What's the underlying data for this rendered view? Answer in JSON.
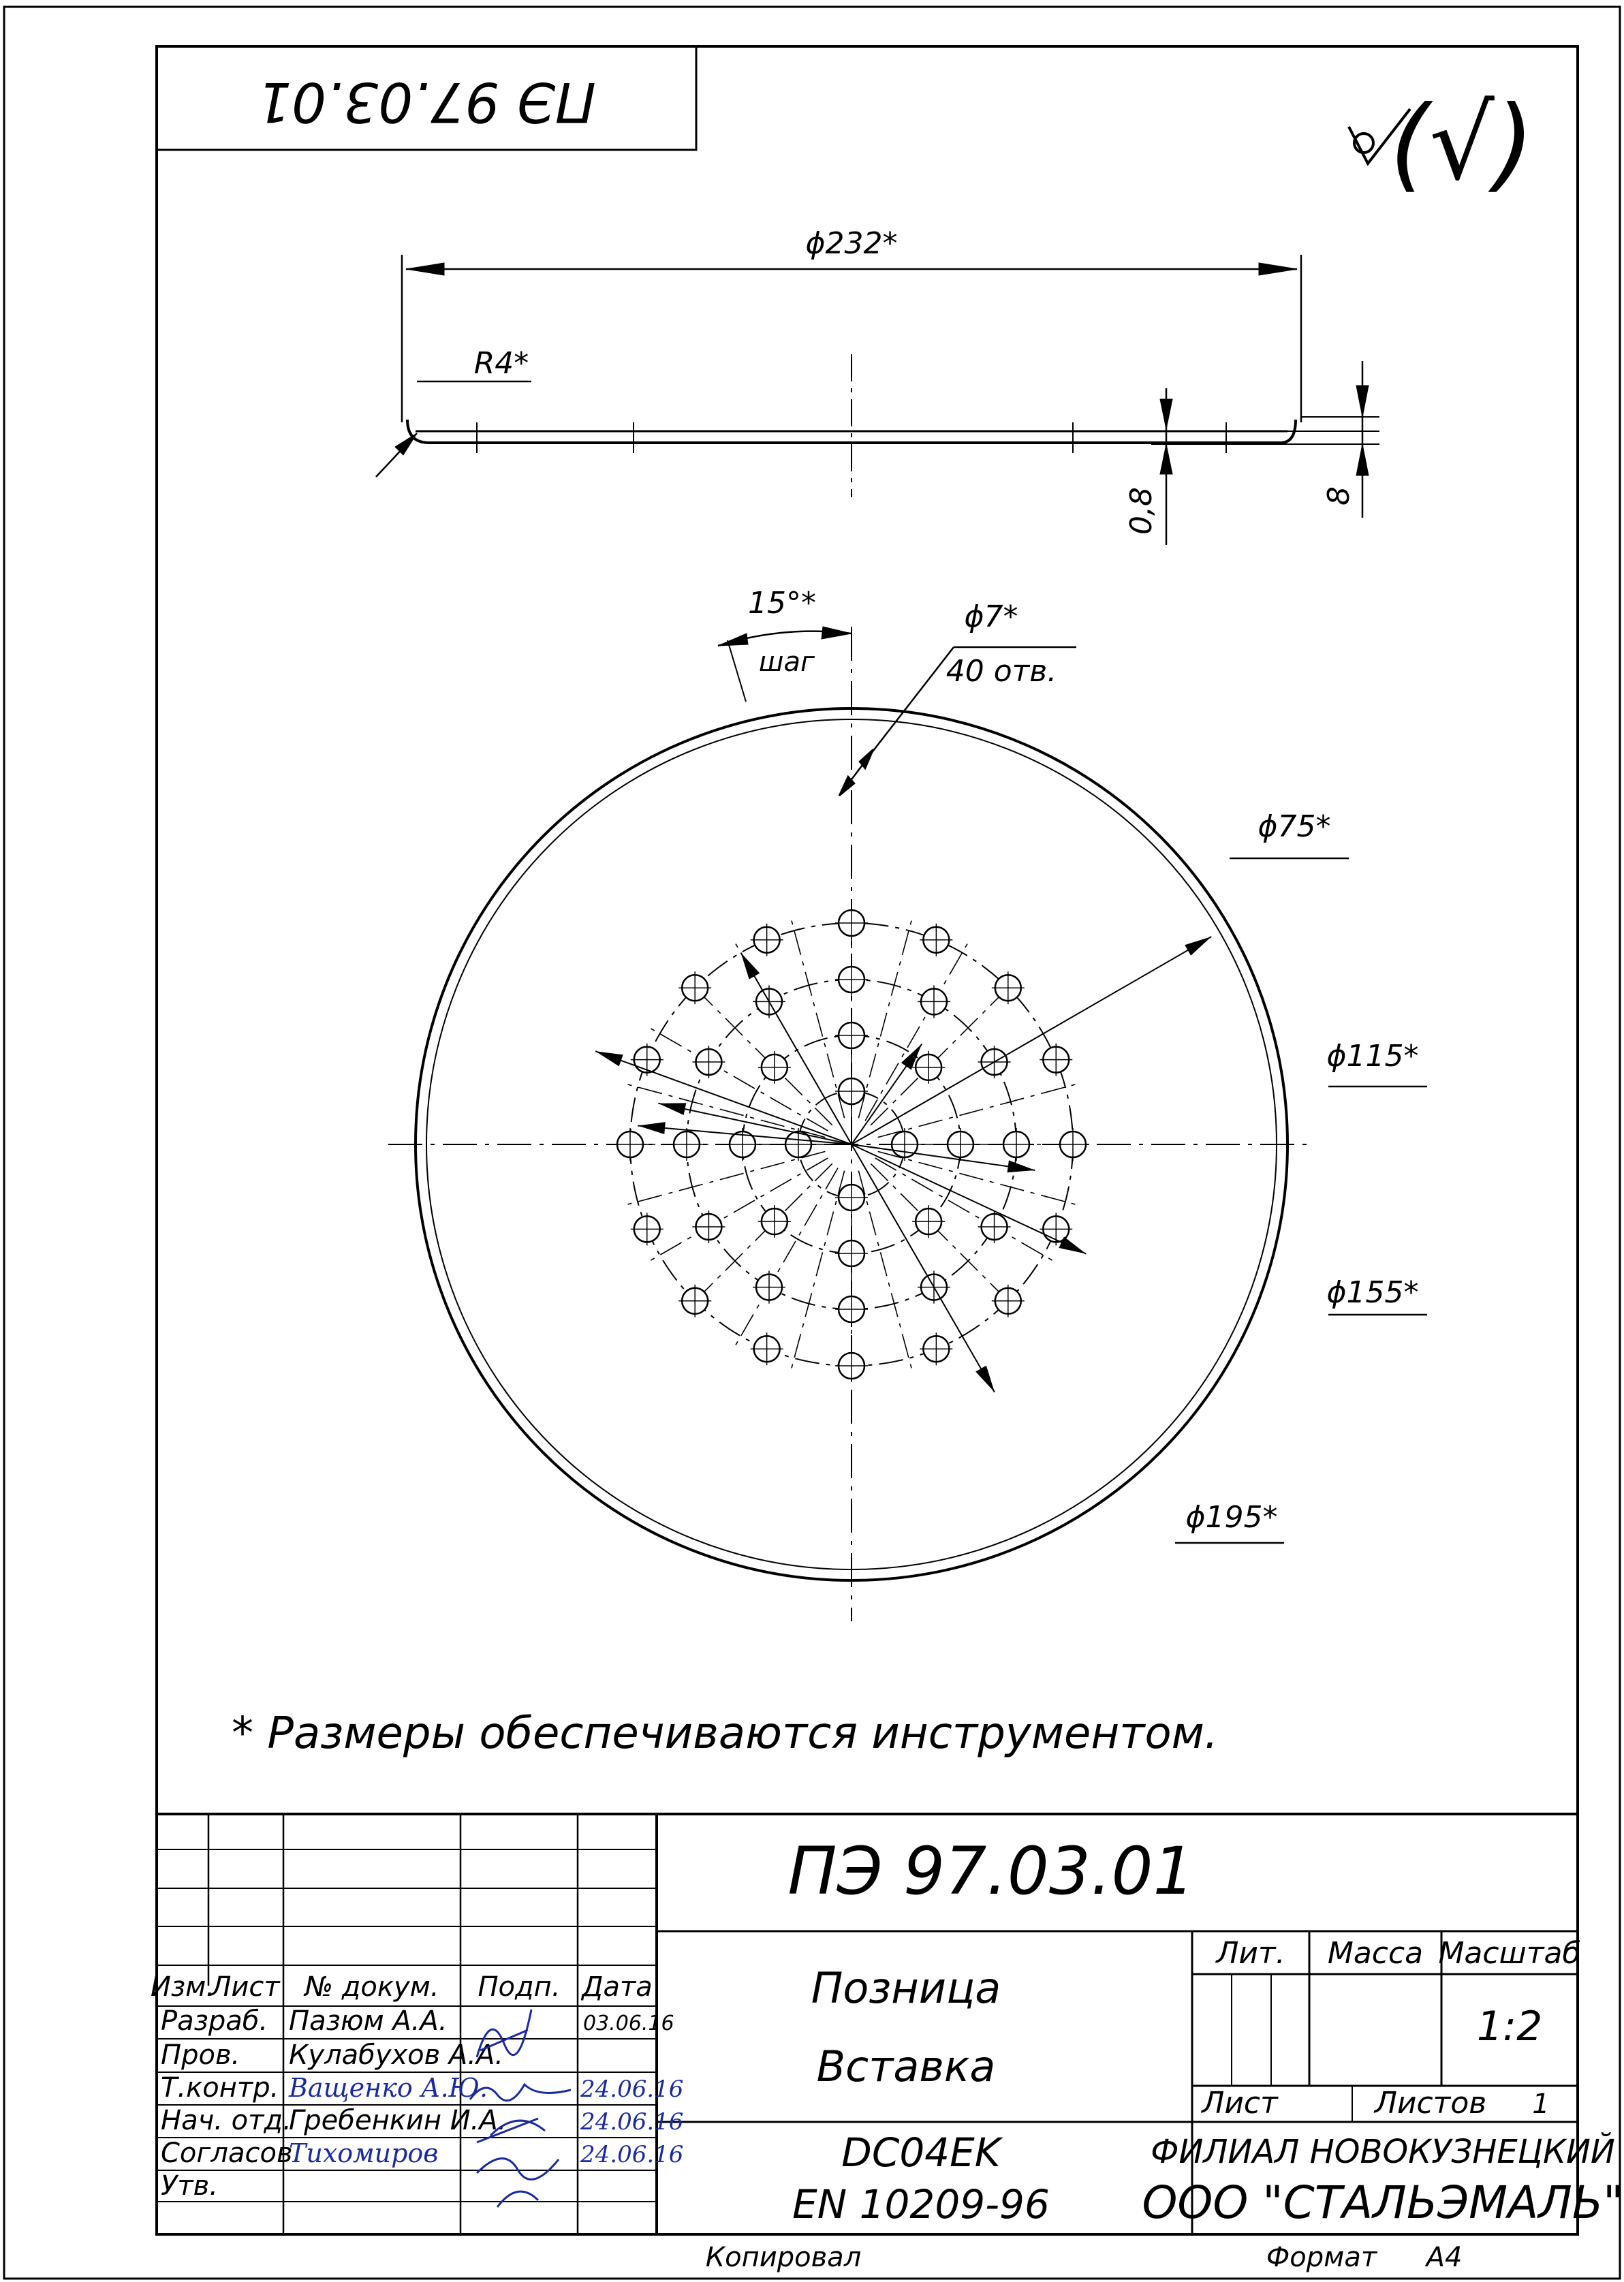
{
  "stamp_top": "ПЭ 97.03.01",
  "roughness_mark": "(√)",
  "dimensions": {
    "outer_diameter": "ϕ232*",
    "radius": "R4*",
    "thickness": "0,8",
    "height": "8",
    "pitch_angle": "15°*",
    "pitch_word": "шаг",
    "hole_diameter": "ϕ7*",
    "hole_count": "40 отв.",
    "d75": "ϕ75*",
    "d115": "ϕ115*",
    "d155": "ϕ155*",
    "d195": "ϕ195*"
  },
  "note": "* Размеры обеспечиваются инструментом.",
  "title_block": {
    "designation": "ПЭ 97.03.01",
    "product_line1": "Позница",
    "product_line2": "Вставка",
    "material_line1": "DC04EK",
    "material_line2": "EN 10209-96",
    "header_cols": [
      "Изм.",
      "Лист",
      "№ докум.",
      "Подп.",
      "Дата"
    ],
    "roles": [
      "Разраб.",
      "Пров.",
      "Т.контр.",
      "Нач. отд.",
      "Согласов.",
      "Утв."
    ],
    "names": [
      "Пазюм А.А.",
      "Кулабухов А.А.",
      "Ващенко А.Ю.",
      "Гребенкин И.А.",
      "Тихомиров",
      ""
    ],
    "dates": [
      "03.06.16",
      "",
      "24.06.16",
      "24.06.16",
      "24.06.16",
      ""
    ],
    "lit_label": "Лит.",
    "mass_label": "Масса",
    "scale_label": "Масштаб",
    "scale_value": "1:2",
    "sheet_label": "Лист",
    "sheets_label": "Листов",
    "sheets_value": "1",
    "org_line1": "ФИЛИАЛ НОВОКУЗНЕЦКИЙ",
    "org_line2": "ООО \"СТАЛЬЭМАЛЬ\"",
    "copied_label": "Копировал",
    "format_label": "Формат",
    "format_value": "А4"
  }
}
